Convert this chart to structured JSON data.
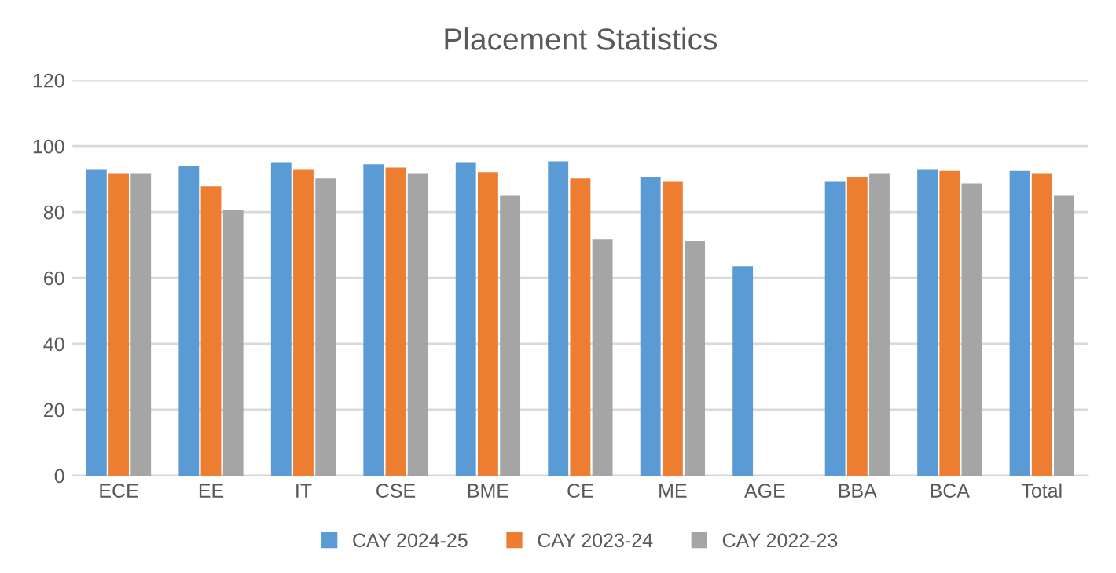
{
  "chart_data": {
    "type": "bar",
    "title": "Placement Statistics",
    "categories": [
      "ECE",
      "EE",
      "IT",
      "CSE",
      "BME",
      "CE",
      "ME",
      "AGE",
      "BBA",
      "BCA",
      "Total"
    ],
    "series": [
      {
        "name": "CAY 2024-25",
        "color": "#5b9bd5",
        "values": [
          93.0,
          94.0,
          94.9,
          94.5,
          94.9,
          95.4,
          90.6,
          63.5,
          89.2,
          93.0,
          92.5
        ]
      },
      {
        "name": "CAY 2023-24",
        "color": "#ed7d31",
        "values": [
          91.6,
          87.8,
          93.0,
          93.5,
          92.1,
          90.2,
          89.2,
          null,
          90.6,
          92.5,
          91.6
        ]
      },
      {
        "name": "CAY 2022-23",
        "color": "#a5a5a5",
        "values": [
          91.6,
          80.7,
          90.2,
          91.6,
          84.9,
          71.6,
          71.2,
          null,
          91.6,
          88.7,
          84.9
        ]
      }
    ],
    "ylim": [
      0,
      120
    ],
    "yticks": [
      0,
      20,
      40,
      60,
      80,
      100,
      120
    ],
    "grid": "y",
    "legend": "bottom"
  }
}
